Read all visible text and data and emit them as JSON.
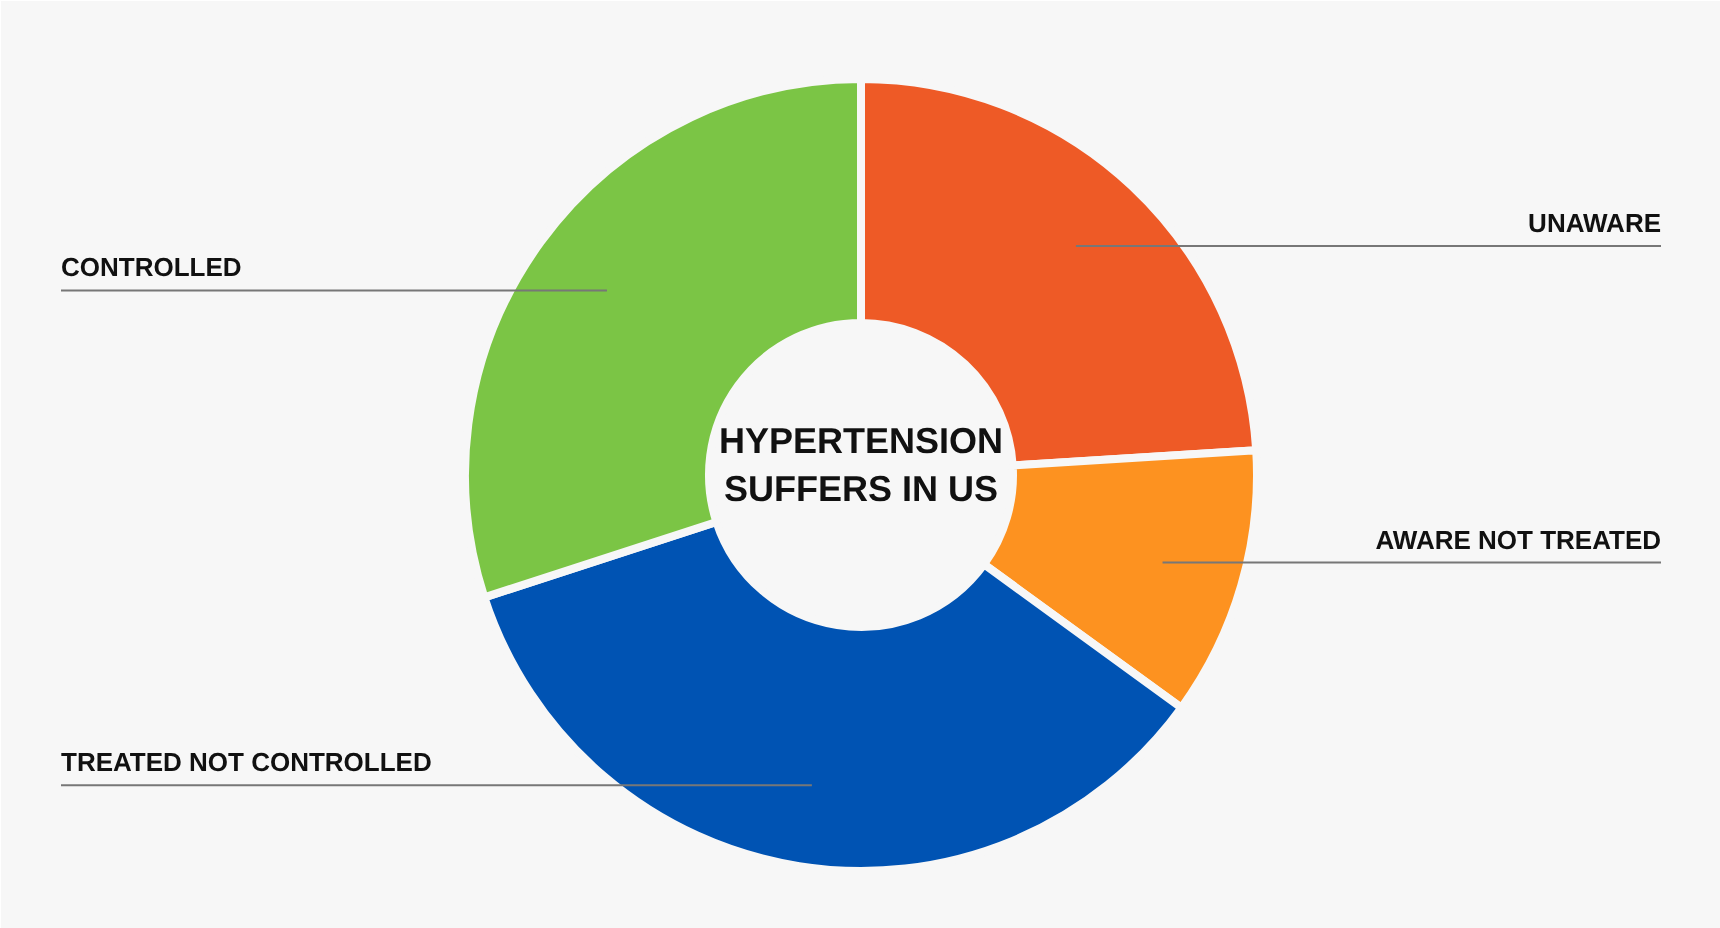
{
  "chart_data": {
    "type": "donut",
    "title": "HYPERTENSION\nSUFFERS IN US",
    "categories": [
      "UNAWARE",
      "AWARE NOT TREATED",
      "TREATED NOT CONTROLLED",
      "CONTROLLED"
    ],
    "values": [
      24,
      11,
      35,
      30
    ],
    "colors": [
      "#ee5a26",
      "#fd9220",
      "#0053b3",
      "#7bc545"
    ]
  }
}
